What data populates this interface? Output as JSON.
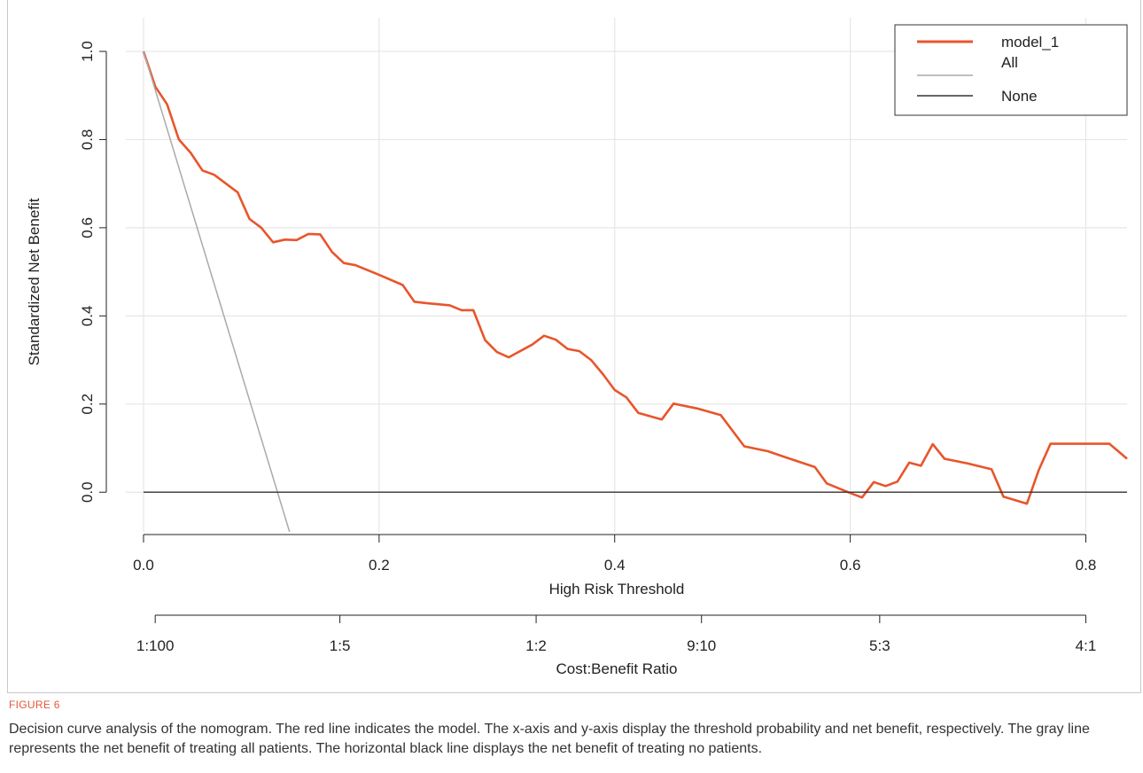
{
  "chart_data": {
    "type": "line",
    "title": "",
    "xlabel": "High Risk Threshold",
    "ylabel": "Standardized Net Benefit",
    "xlim": [
      0,
      0.835
    ],
    "ylim": [
      -0.09,
      1.0
    ],
    "grid": true,
    "x_ticks": [
      0.0,
      0.2,
      0.4,
      0.6,
      0.8
    ],
    "x_tick_labels": [
      "0.0",
      "0.2",
      "0.4",
      "0.6",
      "0.8"
    ],
    "y_ticks": [
      0.0,
      0.2,
      0.4,
      0.6,
      0.8,
      1.0
    ],
    "y_tick_labels": [
      "0.0",
      "0.2",
      "0.4",
      "0.6",
      "0.8",
      "1.0"
    ],
    "secondary_axis": {
      "label": "Cost:Benefit Ratio",
      "tick_labels": [
        "1:100",
        "1:5",
        "1:2",
        "9:10",
        "5:3",
        "4:1"
      ],
      "tick_thresholds": [
        0.0099,
        0.1667,
        0.3333,
        0.4737,
        0.625,
        0.8
      ]
    },
    "legend": {
      "position": "top-right",
      "entries": [
        "model_1",
        "All",
        "None"
      ]
    },
    "series": [
      {
        "name": "model_1",
        "color": "#e8552b",
        "x": [
          0.0,
          0.01,
          0.02,
          0.03,
          0.04,
          0.05,
          0.06,
          0.07,
          0.08,
          0.09,
          0.1,
          0.11,
          0.12,
          0.13,
          0.14,
          0.15,
          0.16,
          0.17,
          0.18,
          0.2,
          0.22,
          0.23,
          0.24,
          0.26,
          0.27,
          0.28,
          0.29,
          0.3,
          0.31,
          0.33,
          0.34,
          0.35,
          0.36,
          0.37,
          0.38,
          0.39,
          0.4,
          0.41,
          0.42,
          0.44,
          0.45,
          0.47,
          0.49,
          0.51,
          0.53,
          0.55,
          0.57,
          0.58,
          0.6,
          0.61,
          0.62,
          0.63,
          0.64,
          0.65,
          0.66,
          0.67,
          0.68,
          0.7,
          0.72,
          0.73,
          0.75,
          0.76,
          0.77,
          0.79,
          0.81,
          0.82,
          0.835
        ],
        "y": [
          1.0,
          0.92,
          0.88,
          0.8,
          0.77,
          0.73,
          0.72,
          0.7,
          0.68,
          0.62,
          0.6,
          0.567,
          0.573,
          0.572,
          0.586,
          0.585,
          0.545,
          0.52,
          0.515,
          0.493,
          0.47,
          0.432,
          0.429,
          0.424,
          0.413,
          0.413,
          0.345,
          0.318,
          0.306,
          0.335,
          0.355,
          0.346,
          0.325,
          0.32,
          0.3,
          0.268,
          0.232,
          0.215,
          0.18,
          0.165,
          0.201,
          0.19,
          0.175,
          0.104,
          0.093,
          0.075,
          0.057,
          0.02,
          -0.002,
          -0.012,
          0.023,
          0.014,
          0.024,
          0.067,
          0.06,
          0.109,
          0.076,
          0.065,
          0.052,
          -0.01,
          -0.026,
          0.05,
          0.11,
          0.11,
          0.11,
          0.11,
          0.076
        ]
      },
      {
        "name": "All",
        "color": "#aaaaaa",
        "x": [
          0.0,
          0.124
        ],
        "y": [
          1.0,
          -0.09
        ]
      },
      {
        "name": "None",
        "color": "#333333",
        "x": [
          0.0,
          0.835
        ],
        "y": [
          0.0,
          0.0
        ]
      }
    ]
  },
  "caption": {
    "label": "FIGURE 6",
    "text": "Decision curve analysis of the nomogram. The red line indicates the model. The x-axis and y-axis display the threshold probability and net benefit, respectively. The gray line represents the net benefit of treating all patients. The horizontal black line displays the net benefit of treating no patients."
  },
  "colors": {
    "grid": "#e6e6e6",
    "axis": "#222222",
    "caption_label": "#e2593a"
  }
}
